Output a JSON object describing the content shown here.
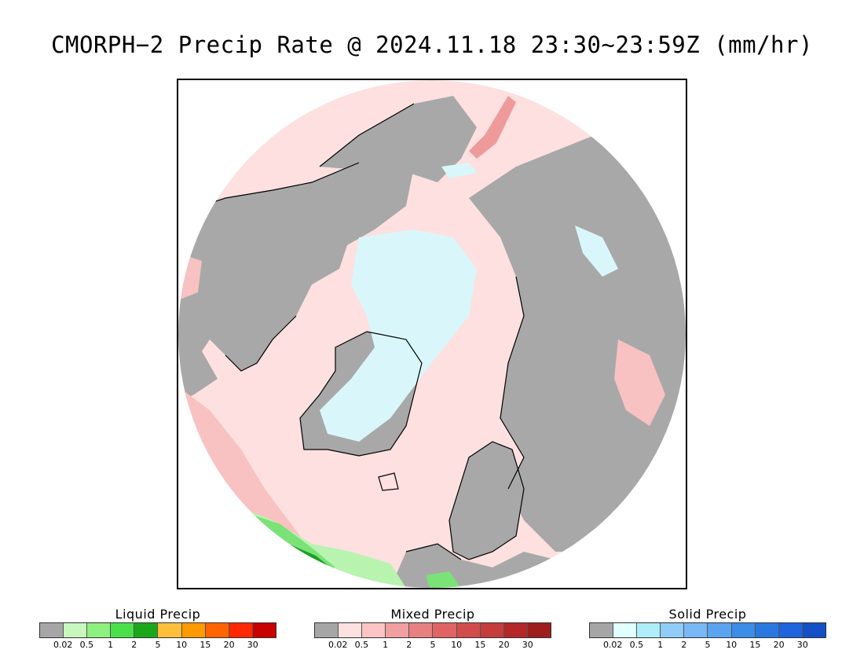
{
  "title": "CMORPH−2 Precip Rate @ 2024.11.18 23:30∼23:59Z (mm/hr)",
  "map": {
    "projection": "north-polar-stereographic",
    "colors": {
      "ocean_no_precip": "#fde0df",
      "land_no_data": "#a8a8a8",
      "snow": "#d9f7fb",
      "mixed_light": "#f8c2c2",
      "mixed_medium": "#ef9a9a",
      "liquid_light": "#b8f4b0",
      "liquid_medium": "#7ae276",
      "liquid_heavy": "#18a022",
      "coastline": "#000000"
    }
  },
  "legends": [
    {
      "title": "Liquid Precip",
      "ticks": [
        "0.02",
        "0.5",
        "1",
        "2",
        "5",
        "10",
        "15",
        "20",
        "30"
      ],
      "colors": [
        "#a6a6a6",
        "#c8f8be",
        "#8ef07e",
        "#4ae04a",
        "#1aa81a",
        "#ffbe3c",
        "#ff9a00",
        "#ff6400",
        "#ff2800",
        "#c80000"
      ]
    },
    {
      "title": "Mixed Precip",
      "ticks": [
        "0.02",
        "0.5",
        "1",
        "2",
        "5",
        "10",
        "15",
        "20",
        "30"
      ],
      "colors": [
        "#a6a6a6",
        "#fde0e0",
        "#fcc4c4",
        "#f0a0a0",
        "#e88080",
        "#e06464",
        "#d24c4c",
        "#c43c3c",
        "#b42828",
        "#9e1e1e"
      ]
    },
    {
      "title": "Solid Precip",
      "ticks": [
        "0.02",
        "0.5",
        "1",
        "2",
        "5",
        "10",
        "15",
        "20",
        "30"
      ],
      "colors": [
        "#a6a6a6",
        "#e0ffff",
        "#aeeef8",
        "#90ccf8",
        "#78b8f4",
        "#5aa4f0",
        "#3c8ce8",
        "#2878e0",
        "#1e64dc",
        "#1450c8"
      ]
    }
  ]
}
